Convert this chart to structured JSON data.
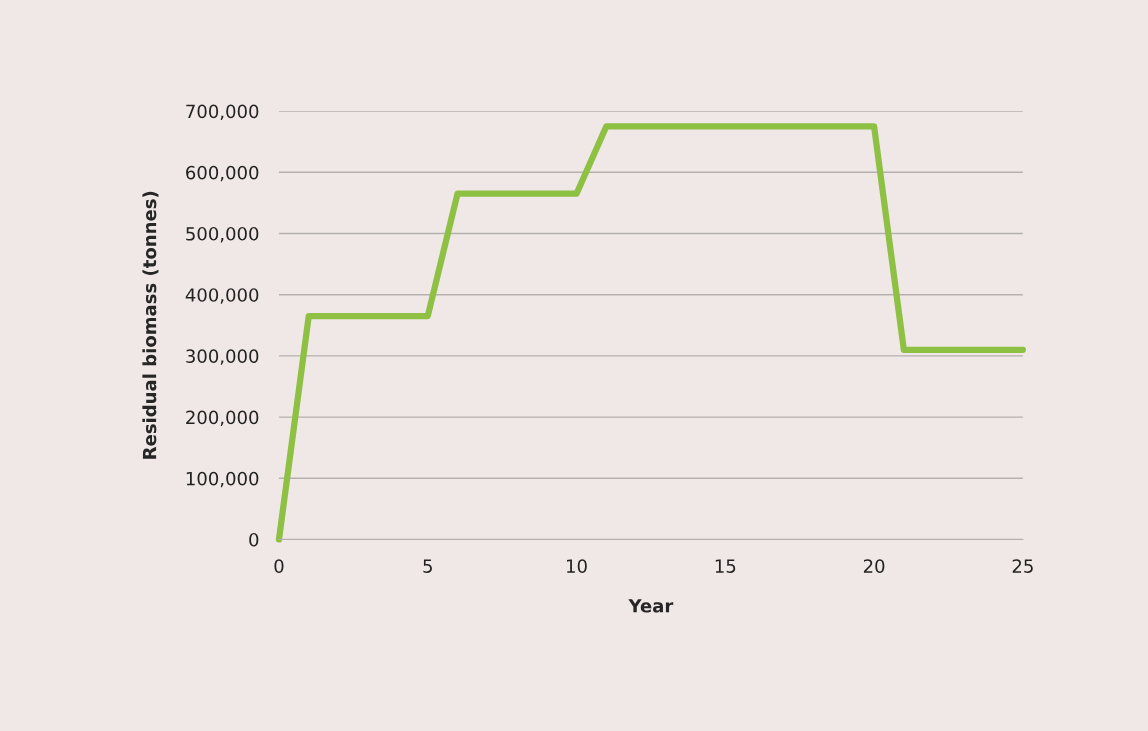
{
  "chart_data": {
    "type": "line",
    "xlabel": "Year",
    "ylabel": "Residual biomass (tonnes)",
    "x": [
      0,
      1,
      5,
      6,
      10,
      11,
      20,
      21,
      25
    ],
    "series": [
      {
        "color": "#8dc043",
        "values": [
          0,
          365000,
          365000,
          565000,
          565000,
          675000,
          675000,
          310000,
          310000
        ]
      }
    ],
    "xlim": [
      0,
      25
    ],
    "xticks": [
      0,
      5,
      10,
      15,
      20,
      25
    ],
    "ylim": [
      0,
      700000
    ],
    "yticks": [
      0,
      {
        "value": 100000,
        "label": "100,000"
      },
      {
        "value": 200000,
        "label": "200,000"
      },
      {
        "value": 300000,
        "label": "300,000"
      },
      {
        "value": 400000,
        "label": "400,000"
      },
      {
        "value": 500000,
        "label": "500,000"
      },
      {
        "value": 600000,
        "label": "600,000"
      },
      {
        "value": 700000,
        "label": "700,000"
      }
    ],
    "grid": "y",
    "legend": false,
    "marker": "none",
    "line_style": "solid"
  }
}
